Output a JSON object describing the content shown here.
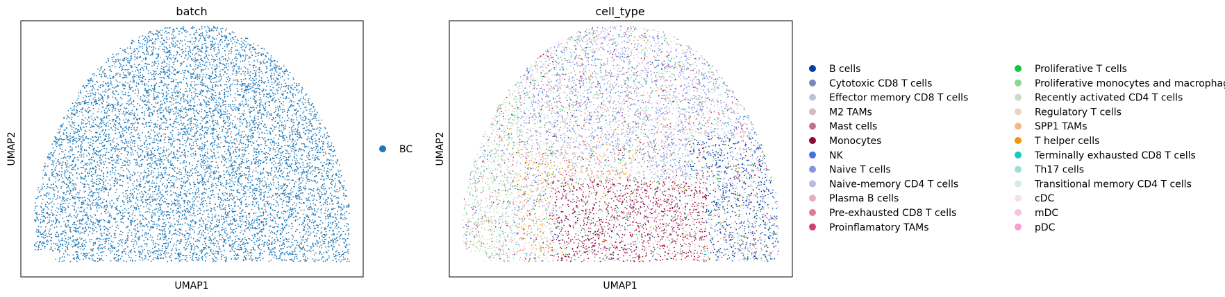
{
  "chart_data": [
    {
      "type": "scatter",
      "title": "batch",
      "xlabel": "UMAP1",
      "ylabel": "UMAP2",
      "ticks": "none",
      "legend_placement": "right",
      "series": [
        {
          "name": "BC",
          "color": "#1f77b4"
        }
      ]
    },
    {
      "type": "scatter",
      "title": "cell_type",
      "xlabel": "UMAP1",
      "ylabel": "UMAP2",
      "ticks": "none",
      "legend_placement": "right",
      "legend_columns": 2,
      "series": [
        {
          "name": "B cells",
          "color": "#023fa5"
        },
        {
          "name": "Cytotoxic CD8 T cells",
          "color": "#7d87b9"
        },
        {
          "name": "Effector memory CD8 T cells",
          "color": "#bec1d4"
        },
        {
          "name": "M2 TAMs",
          "color": "#d6bcc0"
        },
        {
          "name": "Mast cells",
          "color": "#bb7784"
        },
        {
          "name": "Monocytes",
          "color": "#8e063b"
        },
        {
          "name": "NK",
          "color": "#4a6fe3"
        },
        {
          "name": "Naive T cells",
          "color": "#8595e1"
        },
        {
          "name": "Naive-memory CD4 T cells",
          "color": "#b5bbe3"
        },
        {
          "name": "Plasma B cells",
          "color": "#e6afb9"
        },
        {
          "name": "Pre-exhausted CD8 T cells",
          "color": "#e07b91"
        },
        {
          "name": "Proinflamatory TAMs",
          "color": "#d33f6a"
        },
        {
          "name": "Proliferative T cells",
          "color": "#11c638"
        },
        {
          "name": "Proliferative monocytes and macrophages",
          "color": "#8dd593"
        },
        {
          "name": "Recently activated CD4 T cells",
          "color": "#c6dec7"
        },
        {
          "name": "Regulatory T cells",
          "color": "#ead3c6"
        },
        {
          "name": "SPP1 TAMs",
          "color": "#f0b98d"
        },
        {
          "name": "T helper cells",
          "color": "#ef9708"
        },
        {
          "name": "Terminally exhausted CD8 T cells",
          "color": "#0fcfc0"
        },
        {
          "name": "Th17 cells",
          "color": "#9cded6"
        },
        {
          "name": "Transitional memory CD4 T cells",
          "color": "#d5eae7"
        },
        {
          "name": "cDC",
          "color": "#f3e1eb"
        },
        {
          "name": "mDC",
          "color": "#f6c4e1"
        },
        {
          "name": "pDC",
          "color": "#f79cd4"
        }
      ]
    }
  ]
}
